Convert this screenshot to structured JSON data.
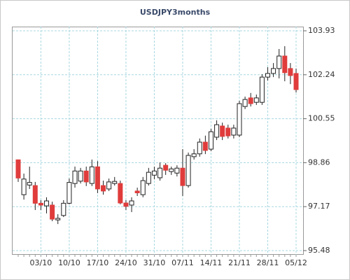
{
  "chart_data": {
    "type": "candlestick",
    "title": "USDJPY3months",
    "categories": [
      null,
      null,
      null,
      null,
      "03/10",
      null,
      null,
      null,
      null,
      "10/10",
      null,
      null,
      null,
      null,
      "17/10",
      null,
      null,
      null,
      null,
      "24/10",
      null,
      null,
      null,
      null,
      "31/10",
      null,
      null,
      null,
      null,
      "07/11",
      null,
      null,
      null,
      null,
      "14/11",
      null,
      null,
      null,
      null,
      "21/11",
      null,
      null,
      null,
      null,
      "28/11",
      null,
      null,
      null,
      null,
      "05/12"
    ],
    "open": [
      98.97,
      97.63,
      98.0,
      97.98,
      97.3,
      97.2,
      97.23,
      96.66,
      96.83,
      97.3,
      98.06,
      98.15,
      98.54,
      98.06,
      98.7,
      97.98,
      97.85,
      98.06,
      98.06,
      97.31,
      97.23,
      97.77,
      97.63,
      98.06,
      98.38,
      98.28,
      98.76,
      98.52,
      98.46,
      98.65,
      97.98,
      99.09,
      99.2,
      99.65,
      99.38,
      99.84,
      100.27,
      100.19,
      99.92,
      99.92,
      101.02,
      101.35,
      101.18,
      101.18,
      102.15,
      102.29,
      102.48,
      102.96,
      102.48,
      102.29
    ],
    "high": [
      98.98,
      98.44,
      98.71,
      98.12,
      97.42,
      97.53,
      97.36,
      96.88,
      97.42,
      98.25,
      98.71,
      98.66,
      98.71,
      98.98,
      98.92,
      98.17,
      98.25,
      98.31,
      98.17,
      97.42,
      97.53,
      97.9,
      98.31,
      98.66,
      98.71,
      98.87,
      98.84,
      98.71,
      98.76,
      99.38,
      99.25,
      99.38,
      99.79,
      99.9,
      100.16,
      100.49,
      100.4,
      100.32,
      100.32,
      101.24,
      101.4,
      101.54,
      101.48,
      102.26,
      102.53,
      102.69,
      103.23,
      103.34,
      102.69,
      102.48
    ],
    "low": [
      98.12,
      97.44,
      97.85,
      97.04,
      97.04,
      96.91,
      96.61,
      96.5,
      96.77,
      97.26,
      97.9,
      98.06,
      97.96,
      97.96,
      97.69,
      97.63,
      97.77,
      97.98,
      97.26,
      97.04,
      96.96,
      97.58,
      97.53,
      97.98,
      98.22,
      98.17,
      98.39,
      98.39,
      98.33,
      97.58,
      97.9,
      98.98,
      99.09,
      99.19,
      99.3,
      99.73,
      99.73,
      99.79,
      99.79,
      99.84,
      100.92,
      101.02,
      101.08,
      101.08,
      102.02,
      102.15,
      102.1,
      101.99,
      101.88,
      101.56
    ],
    "close": [
      98.27,
      98.23,
      98.1,
      97.3,
      97.23,
      97.39,
      96.69,
      96.72,
      97.3,
      98.1,
      98.54,
      98.54,
      98.12,
      98.7,
      97.85,
      97.77,
      98.12,
      98.14,
      97.31,
      97.18,
      97.39,
      97.7,
      98.17,
      98.49,
      98.54,
      98.65,
      98.57,
      98.62,
      98.65,
      97.98,
      99.14,
      99.2,
      99.65,
      99.33,
      100.05,
      100.32,
      99.87,
      99.89,
      100.19,
      101.13,
      101.29,
      101.13,
      101.35,
      102.15,
      102.29,
      102.48,
      102.96,
      102.32,
      102.21,
      101.67
    ],
    "ylim": [
      95.48,
      103.93
    ],
    "yticks": [
      95.48,
      97.17,
      98.86,
      100.55,
      102.24,
      103.93
    ],
    "grid": true,
    "up_color": "#ffffff",
    "down_color": "#e03c3c",
    "edge_color": "#222222"
  }
}
